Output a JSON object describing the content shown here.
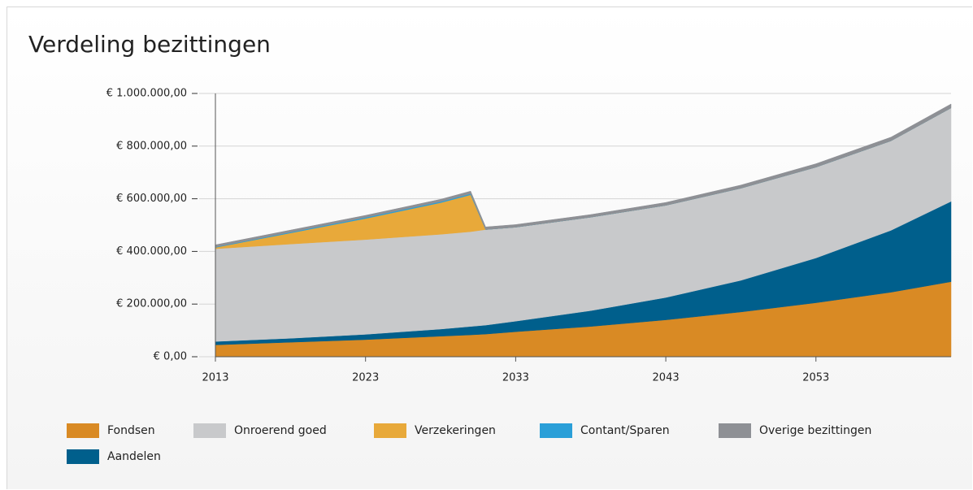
{
  "chart_data": {
    "type": "stacked_area",
    "title": "Verdeling bezittingen",
    "x": [
      2013,
      2018,
      2023,
      2028,
      2030,
      2031,
      2033,
      2038,
      2043,
      2048,
      2053,
      2058,
      2062
    ],
    "xlim": [
      2013,
      2062
    ],
    "xticks": [
      2013,
      2023,
      2033,
      2043,
      2053
    ],
    "ylim": [
      0,
      1000000
    ],
    "yticks": [
      {
        "value": 0,
        "label": "€ 0,00"
      },
      {
        "value": 200000,
        "label": "€ 200.000,00"
      },
      {
        "value": 400000,
        "label": "€ 400.000,00"
      },
      {
        "value": 600000,
        "label": "€ 600.000,00"
      },
      {
        "value": 800000,
        "label": "€ 800.000,00"
      },
      {
        "value": 1000000,
        "label": "€ 1.000.000,00"
      }
    ],
    "grid": true,
    "legend": "bottom",
    "series": [
      {
        "name": "Fondsen",
        "color": "#d98a24",
        "values": [
          45000,
          55000,
          65000,
          78000,
          83000,
          86000,
          95000,
          115000,
          140000,
          170000,
          205000,
          245000,
          285000
        ]
      },
      {
        "name": "Onroerend goed",
        "color": "#c8c9cb",
        "values": [
          352000,
          358000,
          360000,
          360000,
          360000,
          363000,
          357000,
          355000,
          350000,
          350000,
          345000,
          340000,
          355000
        ]
      },
      {
        "name": "Verzekeringen",
        "color": "#e8a93a",
        "values": [
          5000,
          42000,
          80000,
          120000,
          140000,
          0,
          0,
          0,
          0,
          0,
          0,
          0,
          0
        ]
      },
      {
        "name": "Contant/Sparen",
        "color": "#2a9fd8",
        "values": [
          2000,
          3000,
          4000,
          4000,
          4000,
          0,
          0,
          0,
          0,
          0,
          0,
          0,
          0
        ]
      },
      {
        "name": "Overige bezittingen",
        "color": "#8e9095",
        "values": [
          8000,
          8000,
          8000,
          9000,
          10000,
          10000,
          10000,
          10000,
          11000,
          12000,
          13000,
          14000,
          15000
        ]
      },
      {
        "name": "Aandelen",
        "color": "#005f8c",
        "values": [
          13000,
          15000,
          20000,
          27000,
          32000,
          34000,
          40000,
          60000,
          85000,
          120000,
          170000,
          235000,
          305000
        ]
      }
    ]
  }
}
